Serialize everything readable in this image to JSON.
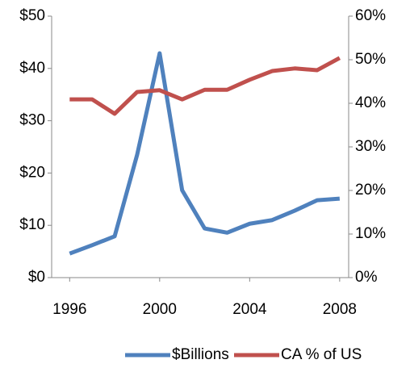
{
  "chart_data": {
    "type": "line",
    "x": [
      1996,
      1997,
      1998,
      1999,
      2000,
      2001,
      2002,
      2003,
      2004,
      2005,
      2006,
      2007,
      2008
    ],
    "series": [
      {
        "name": "$Billions",
        "color": "#4f81bd",
        "axis": "y",
        "values": [
          4.6,
          6.2,
          7.9,
          23.5,
          42.9,
          16.7,
          9.4,
          8.6,
          10.3,
          11,
          12.8,
          14.8,
          15.1
        ]
      },
      {
        "name": "CA % of US",
        "color": "#c0504d",
        "axis": "y2",
        "values": [
          40.9,
          40.9,
          37.6,
          42.6,
          43,
          40.9,
          43.1,
          43.1,
          45.4,
          47.4,
          48,
          47.6,
          50.4
        ]
      }
    ],
    "xlim": [
      1995.2,
      2008.4
    ],
    "xticks": [
      1996,
      2000,
      2004,
      2008
    ],
    "ylim": [
      0,
      50
    ],
    "yticks": [
      {
        "value": 0,
        "label": "$0"
      },
      {
        "value": 10,
        "label": "$10"
      },
      {
        "value": 20,
        "label": "$20"
      },
      {
        "value": 30,
        "label": "$30"
      },
      {
        "value": 40,
        "label": "$40"
      },
      {
        "value": 50,
        "label": "$50"
      }
    ],
    "y2lim": [
      0,
      60
    ],
    "y2ticks": [
      {
        "value": 0,
        "label": "0%"
      },
      {
        "value": 10,
        "label": "10%"
      },
      {
        "value": 20,
        "label": "20%"
      },
      {
        "value": 30,
        "label": "30%"
      },
      {
        "value": 40,
        "label": "40%"
      },
      {
        "value": 50,
        "label": "50%"
      },
      {
        "value": 60,
        "label": "60%"
      }
    ],
    "grid": false,
    "legend": "bottom"
  }
}
